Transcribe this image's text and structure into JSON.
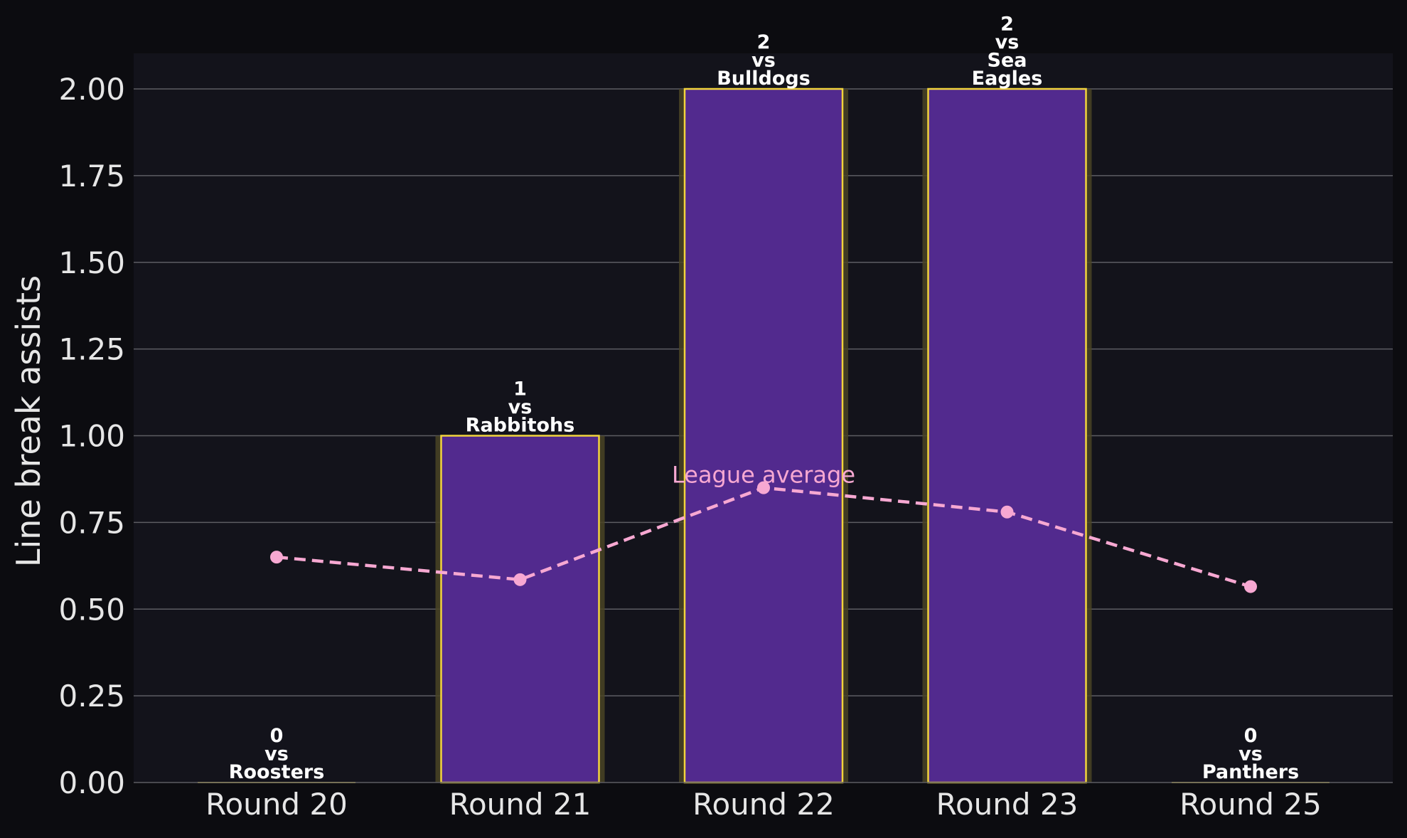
{
  "chart_data": {
    "type": "bar",
    "title": "",
    "xlabel": "",
    "ylabel": "Line break assists",
    "categories": [
      "Round 20",
      "Round 21",
      "Round 22",
      "Round 23",
      "Round 25"
    ],
    "values": [
      0,
      1,
      2,
      2,
      0
    ],
    "bar_labels": [
      [
        "0",
        "vs",
        "Roosters"
      ],
      [
        "1",
        "vs",
        "Rabbitohs"
      ],
      [
        "2",
        "vs",
        "Bulldogs"
      ],
      [
        "2",
        "vs",
        "Sea",
        "Eagles"
      ],
      [
        "0",
        "vs",
        "Panthers"
      ]
    ],
    "line_series": {
      "values": [
        0.65,
        0.585,
        0.85,
        0.78,
        0.565
      ],
      "annotation": "League average",
      "annotation_index": 2
    },
    "ylim": [
      0,
      2.1
    ],
    "yticks": [
      0,
      0.25,
      0.5,
      0.75,
      1.0,
      1.25,
      1.5,
      1.75,
      2.0
    ],
    "ytick_labels": [
      "0.00",
      "0.25",
      "0.50",
      "0.75",
      "1.00",
      "1.25",
      "1.50",
      "1.75",
      "2.00"
    ],
    "grid": true,
    "colors": {
      "figure_bg": "#0c0c10",
      "plot_bg": "#13131b",
      "bar_fill": "#522a8e",
      "bar_edge": "#f2d43c",
      "bar_glow": "#4a4424",
      "line": "#f7a8d2",
      "grid": "#5d5d63",
      "text": "#e6e6e6",
      "label_text": "#ffffff"
    }
  }
}
